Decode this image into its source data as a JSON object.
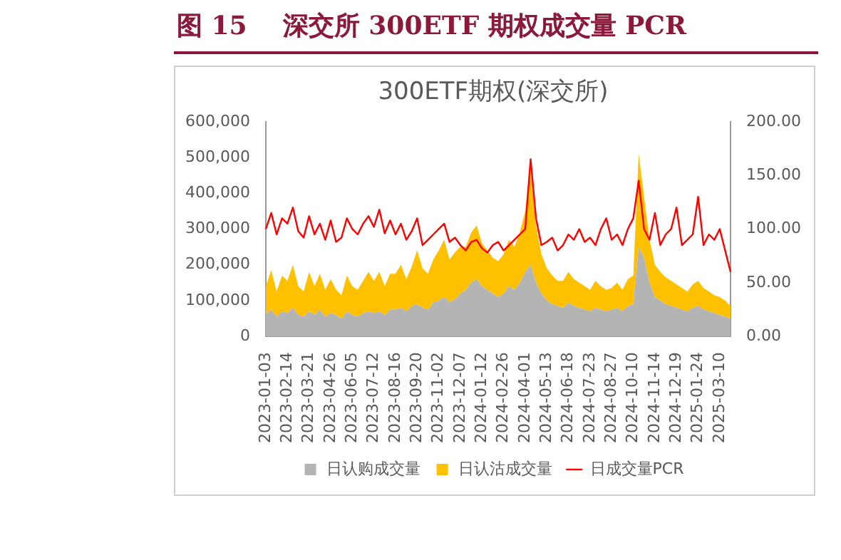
{
  "chart_data": {
    "type": "area",
    "title": "图 15    深交所 300ETF 期权成交量 PCR",
    "subtitle": "300ETF期权(深交所)",
    "stacked": true,
    "legend": "bottom",
    "grid": false,
    "categories": [
      "2023-01-03",
      null,
      null,
      null,
      "2023-02-14",
      null,
      null,
      null,
      "2023-03-21",
      null,
      null,
      null,
      "2023-04-26",
      null,
      null,
      null,
      "2023-06-05",
      null,
      null,
      null,
      "2023-07-12",
      null,
      null,
      null,
      "2023-08-16",
      null,
      null,
      null,
      "2023-09-20",
      null,
      null,
      null,
      "2023-11-02",
      null,
      null,
      null,
      "2023-12-07",
      null,
      null,
      null,
      "2024-01-12",
      null,
      null,
      null,
      "2024-02-26",
      null,
      null,
      null,
      "2024-04-01",
      null,
      null,
      null,
      "2024-05-13",
      null,
      null,
      null,
      "2024-06-18",
      null,
      null,
      null,
      "2024-07-23",
      null,
      null,
      null,
      "2024-08-27",
      null,
      null,
      null,
      "2024-10-10",
      null,
      null,
      null,
      "2024-11-14",
      null,
      null,
      null,
      "2024-12-19",
      null,
      null,
      null,
      "2025-01-24",
      null,
      null,
      null,
      "2025-03-10",
      null,
      null
    ],
    "ylim": [
      0,
      600000
    ],
    "yticks": [
      0,
      {
        "value": 100000,
        "label": "100,000"
      },
      {
        "value": 200000,
        "label": "200,000"
      },
      {
        "value": 300000,
        "label": "300,000"
      },
      {
        "value": 400000,
        "label": "400,000"
      },
      {
        "value": 500000,
        "label": "500,000"
      },
      {
        "value": 600000,
        "label": "600,000"
      }
    ],
    "y2lim": [
      0,
      200
    ],
    "y2ticks": [
      {
        "value": 0,
        "label": "0.00"
      },
      {
        "value": 50,
        "label": "50.00"
      },
      {
        "value": 100,
        "label": "100.00"
      },
      {
        "value": 150,
        "label": "150.00"
      },
      {
        "value": 200,
        "label": "200.00"
      }
    ],
    "series": [
      {
        "name": "日认购成交量",
        "color": "#b4b4b4",
        "values": [
          60000,
          75000,
          55000,
          70000,
          65000,
          80000,
          60000,
          55000,
          70000,
          60000,
          75000,
          55000,
          65000,
          60000,
          50000,
          70000,
          60000,
          55000,
          65000,
          70000,
          65000,
          70000,
          60000,
          75000,
          75000,
          80000,
          70000,
          85000,
          90000,
          80000,
          75000,
          95000,
          100000,
          110000,
          95000,
          105000,
          120000,
          130000,
          150000,
          160000,
          140000,
          130000,
          120000,
          110000,
          120000,
          140000,
          130000,
          150000,
          180000,
          200000,
          150000,
          120000,
          100000,
          90000,
          85000,
          80000,
          95000,
          85000,
          80000,
          75000,
          70000,
          80000,
          75000,
          70000,
          75000,
          80000,
          70000,
          85000,
          90000,
          250000,
          220000,
          150000,
          110000,
          100000,
          90000,
          85000,
          80000,
          75000,
          70000,
          80000,
          85000,
          75000,
          70000,
          65000,
          60000,
          55000,
          50000
        ]
      },
      {
        "name": "日认沽成交量",
        "color": "#ffc000",
        "values": [
          80000,
          110000,
          70000,
          100000,
          90000,
          120000,
          80000,
          70000,
          110000,
          80000,
          100000,
          75000,
          95000,
          70000,
          65000,
          100000,
          80000,
          75000,
          90000,
          110000,
          90000,
          110000,
          80000,
          100000,
          100000,
          120000,
          90000,
          110000,
          150000,
          110000,
          100000,
          120000,
          140000,
          160000,
          120000,
          130000,
          130000,
          120000,
          140000,
          150000,
          120000,
          110000,
          100000,
          100000,
          110000,
          130000,
          120000,
          140000,
          170000,
          290000,
          160000,
          110000,
          90000,
          80000,
          70000,
          75000,
          85000,
          75000,
          70000,
          65000,
          60000,
          75000,
          65000,
          60000,
          60000,
          70000,
          60000,
          75000,
          80000,
          260000,
          170000,
          120000,
          90000,
          80000,
          75000,
          70000,
          65000,
          60000,
          55000,
          65000,
          70000,
          60000,
          55000,
          50000,
          50000,
          45000,
          35000
        ]
      },
      {
        "name": "日成交量PCR",
        "type": "line",
        "axis": "y2",
        "color": "#ff0000",
        "values": [
          100,
          115,
          95,
          110,
          105,
          120,
          98,
          92,
          112,
          95,
          105,
          90,
          108,
          88,
          92,
          110,
          100,
          95,
          105,
          112,
          102,
          118,
          96,
          108,
          95,
          105,
          90,
          98,
          110,
          85,
          90,
          95,
          100,
          105,
          88,
          92,
          85,
          80,
          88,
          90,
          82,
          78,
          85,
          88,
          80,
          85,
          90,
          95,
          100,
          165,
          110,
          85,
          88,
          92,
          80,
          85,
          95,
          90,
          100,
          88,
          92,
          85,
          100,
          110,
          90,
          95,
          85,
          100,
          110,
          145,
          100,
          90,
          115,
          85,
          95,
          100,
          120,
          85,
          90,
          95,
          130,
          85,
          95,
          90,
          100,
          80,
          60
        ]
      }
    ]
  }
}
